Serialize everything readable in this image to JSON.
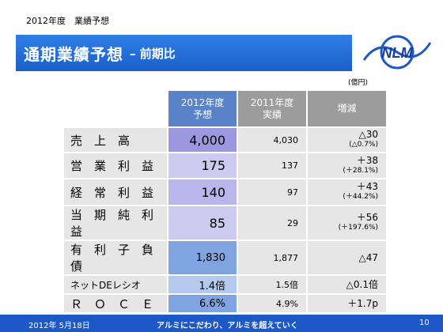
{
  "header": {
    "top_label": "2012年度　業績予想",
    "title": "通期業績予想",
    "subtitle": "– 前期比"
  },
  "logo": {
    "text": "NLM",
    "icon": "nlm-logo"
  },
  "unit": "(億円)",
  "table": {
    "columns": [
      {
        "line1": "2012年度",
        "line2": "予想"
      },
      {
        "line1": "2011年度",
        "line2": "実績"
      },
      {
        "line1": "増減",
        "line2": ""
      }
    ],
    "rows": [
      {
        "label": "売　上　高",
        "v2012": "4,000",
        "v2011": "4,030",
        "diff": "△30",
        "pct": "(△0.7%)"
      },
      {
        "label": "営　業　利　益",
        "v2012": "175",
        "v2011": "137",
        "diff": "＋38",
        "pct": "(＋28.1%)"
      },
      {
        "label": "経　常　利　益",
        "v2012": "140",
        "v2011": "97",
        "diff": "＋43",
        "pct": "(＋44.2%)"
      },
      {
        "label": "当　期　純　利　益",
        "v2012": "85",
        "v2011": "29",
        "diff": "＋56",
        "pct": "(＋197.6%)"
      },
      {
        "label": "有　利　子　負　債",
        "v2012": "1,830",
        "v2011": "1,877",
        "diff": "△47",
        "pct": ""
      },
      {
        "label": "ネットDEレシオ",
        "v2012": "1.4倍",
        "v2011": "1.5倍",
        "diff": "△0.1倍",
        "pct": ""
      },
      {
        "label": "Ｒ　Ｏ　Ｃ　Ｅ",
        "v2012": "6.6%",
        "v2011": "4.9%",
        "diff": "＋1.7p",
        "pct": ""
      }
    ]
  },
  "footer": {
    "date": "2012年 5月18日",
    "slogan": "アルミにこだわり、アルミを超えていく",
    "page": "10"
  },
  "colors": {
    "accent_blue": "#1c58c8",
    "header_gray": "#9c9c9c",
    "cell_gray": "#e6e6e6",
    "purple_cell": "#9b98e0",
    "blue_cell": "#7fa4e0"
  }
}
